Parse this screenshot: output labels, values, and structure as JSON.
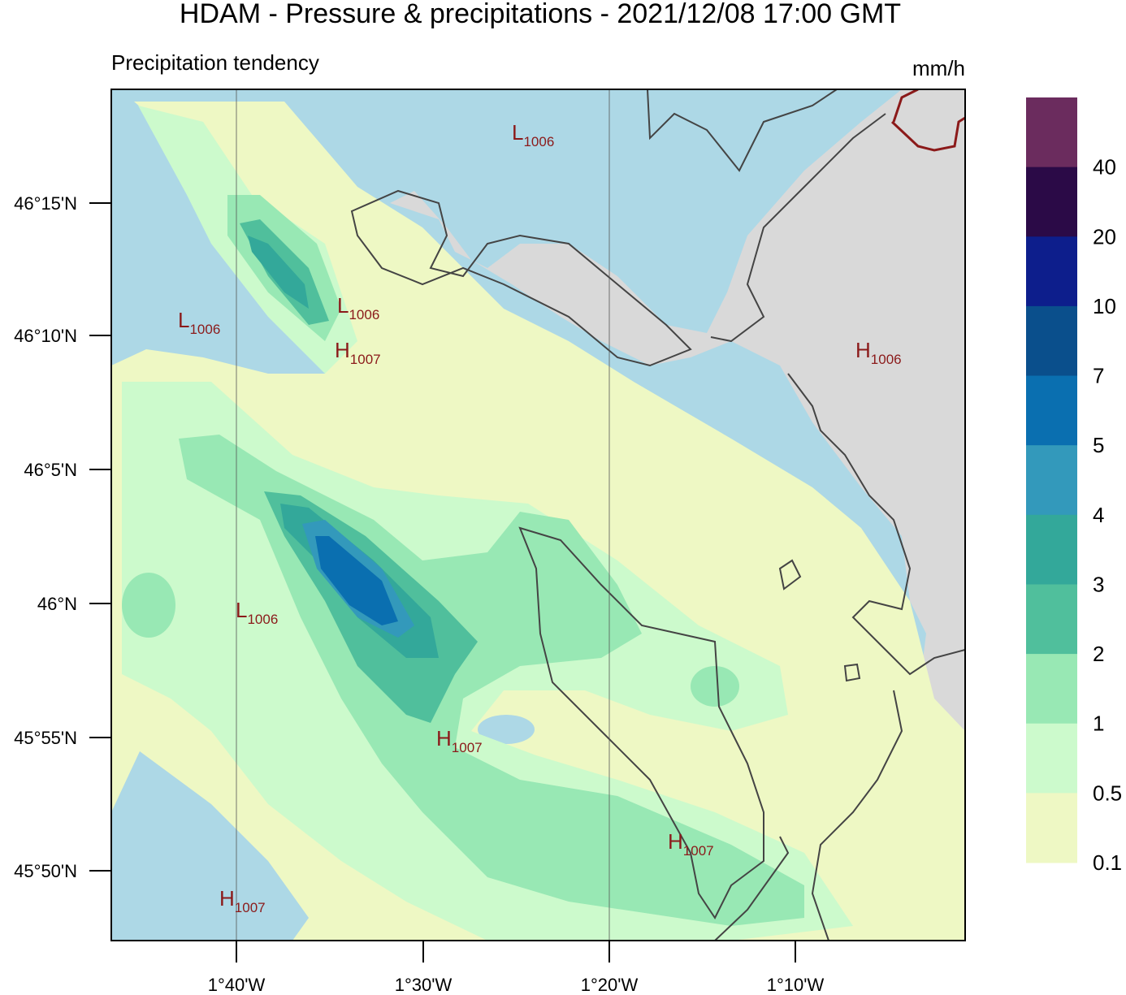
{
  "title": "HDAM - Pressure & precipitations  -  2021/12/08  17:00 GMT",
  "subtitle": "Precipitation tendency",
  "unit": "mm/h",
  "lat_ticks": [
    "46°15'N",
    "46°10'N",
    "46°5'N",
    "46°N",
    "45°55'N",
    "45°50'N"
  ],
  "lon_ticks": [
    "1°40'W",
    "1°30'W",
    "1°20'W",
    "1°10'W"
  ],
  "pressure_labels": [
    {
      "letter": "L",
      "value": "1006"
    },
    {
      "letter": "L",
      "value": "1006"
    },
    {
      "letter": "L",
      "value": "1006"
    },
    {
      "letter": "H",
      "value": "1007"
    },
    {
      "letter": "H",
      "value": "1006"
    },
    {
      "letter": "L",
      "value": "1006"
    },
    {
      "letter": "H",
      "value": "1007"
    },
    {
      "letter": "H",
      "value": "1007"
    },
    {
      "letter": "H",
      "value": "1007"
    }
  ],
  "colorbar": {
    "labels": [
      "40",
      "20",
      "10",
      "7",
      "5",
      "4",
      "3",
      "2",
      "1",
      "0.5",
      "0.1"
    ],
    "colors": [
      "#6b2c5e",
      "#2b0a47",
      "#0d1e8c",
      "#0a4f8c",
      "#0a6fb0",
      "#3399bb",
      "#33a89a",
      "#50bf9c",
      "#98e8b4",
      "#ccfacc",
      "#eef8c4"
    ]
  }
}
